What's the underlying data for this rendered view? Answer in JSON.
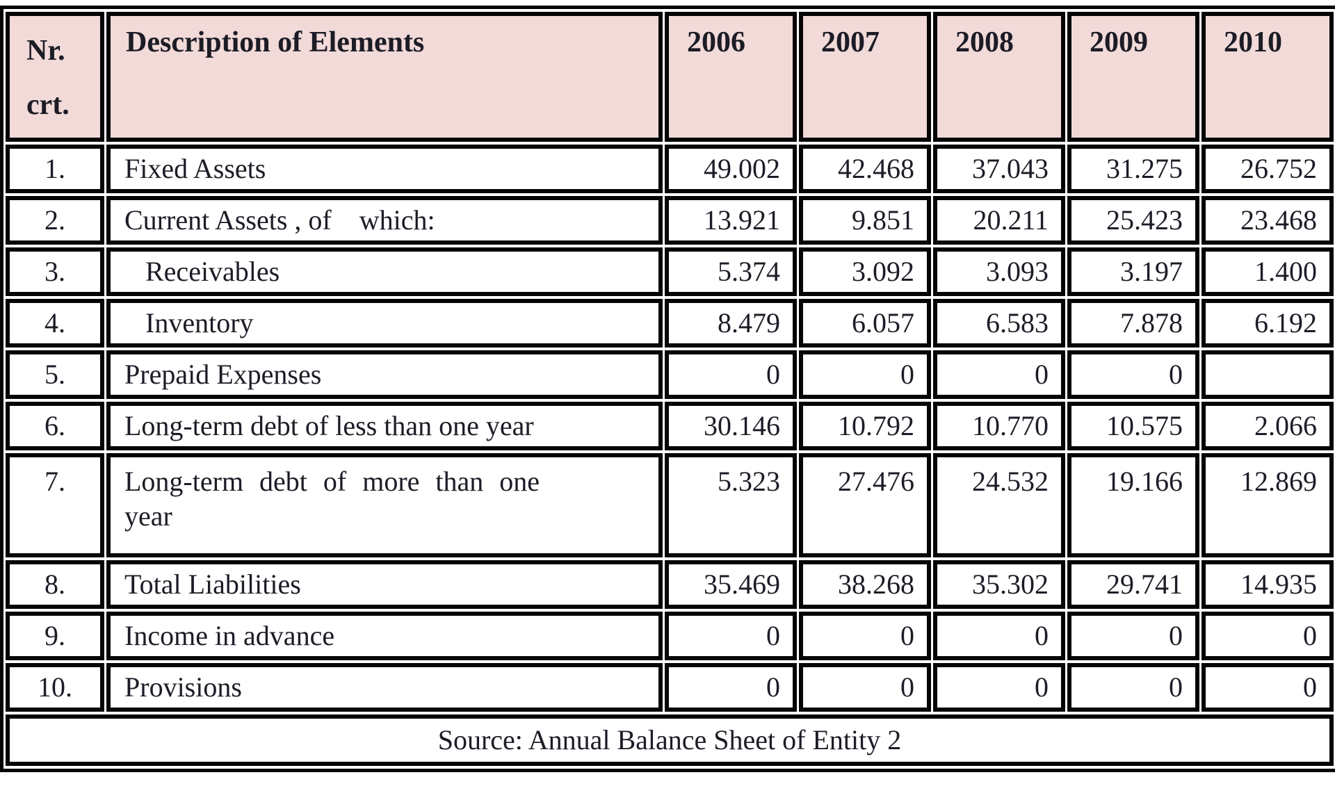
{
  "colors": {
    "header_bg": "#f1dad8",
    "border": "#050505",
    "text": "#1c1c26"
  },
  "table": {
    "header": {
      "nr": "Nr.\ncrt.",
      "description": "Description of Elements",
      "years": [
        "2006",
        "2007",
        "2008",
        "2009",
        "2010"
      ]
    },
    "rows": [
      {
        "nr": "1.",
        "label": "Fixed Assets",
        "values": [
          "49.002",
          "42.468",
          "37.043",
          "31.275",
          "26.752"
        ]
      },
      {
        "nr": "2.",
        "label": "Current Assets , of    which:",
        "values": [
          "13.921",
          "9.851",
          "20.211",
          "25.423",
          "23.468"
        ]
      },
      {
        "nr": "3.",
        "label": "Receivables",
        "values": [
          "5.374",
          "3.092",
          "3.093",
          "3.197",
          "1.400"
        ]
      },
      {
        "nr": "4.",
        "label": "Inventory",
        "values": [
          "8.479",
          "6.057",
          "6.583",
          "7.878",
          "6.192"
        ]
      },
      {
        "nr": "5.",
        "label": "Prepaid Expenses",
        "values": [
          "0",
          "0",
          "0",
          "0",
          ""
        ]
      },
      {
        "nr": "6.",
        "label": "Long-term debt of less than one year",
        "values": [
          "30.146",
          "10.792",
          "10.770",
          "10.575",
          "2.066"
        ]
      },
      {
        "nr": "7.",
        "label": "Long-term debt of more than one\nyear",
        "values": [
          "5.323",
          "27.476",
          "24.532",
          "19.166",
          "12.869"
        ]
      },
      {
        "nr": "8.",
        "label": "Total Liabilities",
        "values": [
          "35.469",
          "38.268",
          "35.302",
          "29.741",
          "14.935"
        ]
      },
      {
        "nr": "9.",
        "label": "Income in advance",
        "values": [
          "0",
          "0",
          "0",
          "0",
          "0"
        ]
      },
      {
        "nr": "10.",
        "label": "Provisions",
        "values": [
          "0",
          "0",
          "0",
          "0",
          "0"
        ]
      }
    ],
    "source": "Source: Annual Balance Sheet of Entity 2"
  }
}
